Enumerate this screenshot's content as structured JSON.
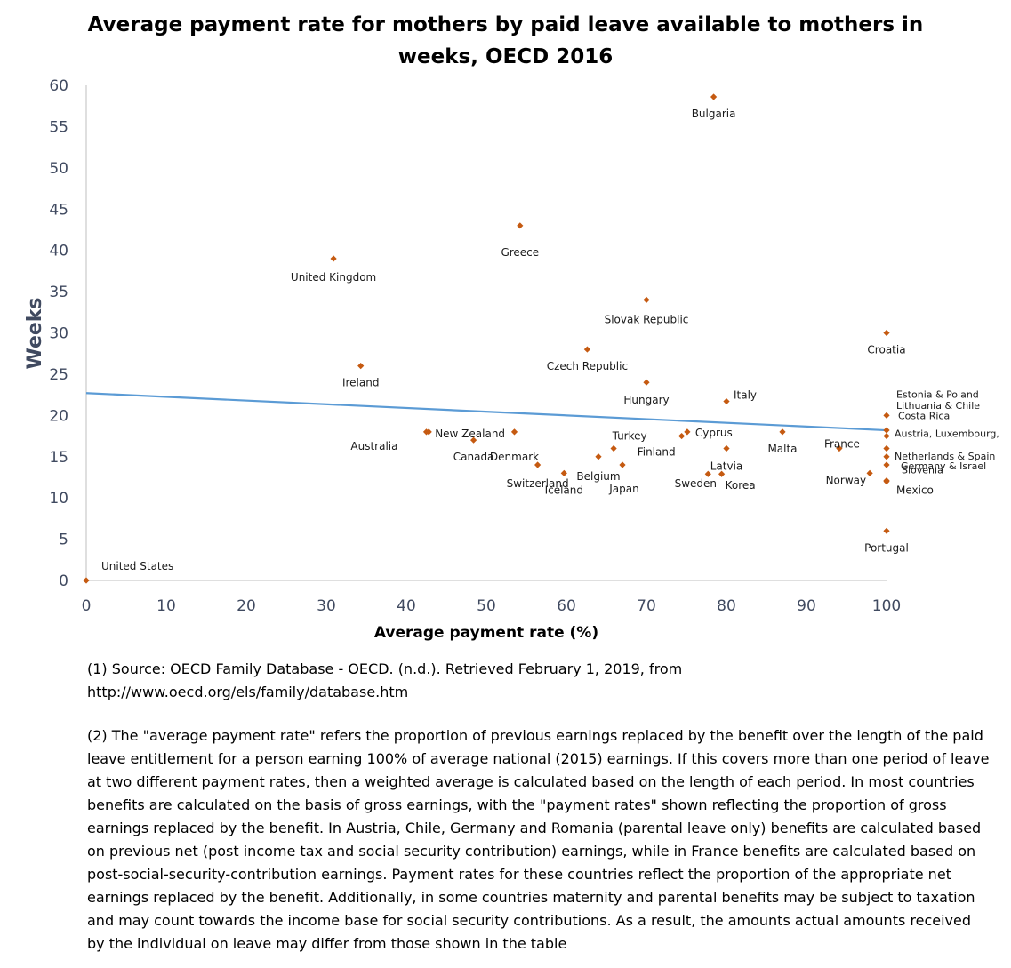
{
  "chart_data": {
    "type": "scatter",
    "title": "Average payment rate for mothers by  paid leave available to mothers in weeks, OECD 2016",
    "title_lines": [
      "Average payment rate for mothers by  paid leave available to mothers in",
      "weeks, OECD 2016"
    ],
    "xlabel": "Average payment rate (%)",
    "ylabel": "Weeks",
    "xlim": [
      0,
      100
    ],
    "ylim": [
      0,
      60
    ],
    "xticks": [
      "0",
      "10",
      "20",
      "30",
      "40",
      "50",
      "60",
      "70",
      "80",
      "90",
      "100"
    ],
    "yticks": [
      "0",
      "5",
      "10",
      "15",
      "20",
      "25",
      "30",
      "35",
      "40",
      "45",
      "50",
      "55",
      "60"
    ],
    "grid": false,
    "marker_color": "#c55a11",
    "trendline": {
      "x": [
        0,
        100
      ],
      "y": [
        22.7,
        18.2
      ],
      "color": "#5b9bd5"
    },
    "points": [
      {
        "x": 0,
        "y": 0,
        "label": "United States"
      },
      {
        "x": 78.4,
        "y": 58.6,
        "label": "Bulgaria"
      },
      {
        "x": 54.2,
        "y": 43,
        "label": "Greece"
      },
      {
        "x": 30.9,
        "y": 39,
        "label": "United Kingdom"
      },
      {
        "x": 70,
        "y": 34,
        "label": "Slovak Republic"
      },
      {
        "x": 100,
        "y": 30,
        "label": "Croatia"
      },
      {
        "x": 62.6,
        "y": 28,
        "label": "Czech Republic"
      },
      {
        "x": 34.3,
        "y": 26,
        "label": "Ireland"
      },
      {
        "x": 70,
        "y": 24,
        "label": "Hungary"
      },
      {
        "x": 80,
        "y": 21.7,
        "label": "Italy"
      },
      {
        "x": 100,
        "y": 20,
        "label": "Estonia & Poland"
      },
      {
        "x": 100,
        "y": 18.2,
        "label": "Lithuania & Chile"
      },
      {
        "x": 100,
        "y": 17.5,
        "label": "Costa Rica"
      },
      {
        "x": 100,
        "y": 16,
        "label": "Austria, Luxembourg,"
      },
      {
        "x": 100,
        "y": 15,
        "label": "Netherlands & Spain"
      },
      {
        "x": 100,
        "y": 14,
        "label": "Germany & Israel"
      },
      {
        "x": 100,
        "y": 12,
        "label": "Slovenia"
      },
      {
        "x": 100,
        "y": 6,
        "label": "Portugal"
      },
      {
        "x": 42.5,
        "y": 18,
        "label": "Australia"
      },
      {
        "x": 42.8,
        "y": 18,
        "label": "New Zealand"
      },
      {
        "x": 48.4,
        "y": 17,
        "label": "Canada"
      },
      {
        "x": 53.5,
        "y": 18,
        "label": "Denmark"
      },
      {
        "x": 56.4,
        "y": 14,
        "label": "Switzerland"
      },
      {
        "x": 59.7,
        "y": 13,
        "label": "Iceland"
      },
      {
        "x": 64,
        "y": 15,
        "label": "Belgium"
      },
      {
        "x": 65.9,
        "y": 16,
        "label": "Turkey"
      },
      {
        "x": 67,
        "y": 14,
        "label": "Japan"
      },
      {
        "x": 74.4,
        "y": 17.5,
        "label": "Finland"
      },
      {
        "x": 75.1,
        "y": 18,
        "label": "Cyprus"
      },
      {
        "x": 77.7,
        "y": 12.9,
        "label": "Sweden"
      },
      {
        "x": 79.4,
        "y": 12.9,
        "label": "Korea"
      },
      {
        "x": 80,
        "y": 16,
        "label": "Latvia"
      },
      {
        "x": 87,
        "y": 18,
        "label": "Malta"
      },
      {
        "x": 94.1,
        "y": 16,
        "label": "France"
      },
      {
        "x": 97.9,
        "y": 13,
        "label": "Norway"
      },
      {
        "x": 100,
        "y": 12.1,
        "label": "Mexico"
      }
    ]
  },
  "notes": {
    "note1_lines": [
      "(1) Source: OECD Family Database - OECD. (n.d.). Retrieved February 1, 2019, from",
      "http://www.oecd.org/els/family/database.htm"
    ],
    "note2_lines": [
      "(2) The \"average payment rate\" refers the proportion of previous earnings replaced by the benefit over the length of the paid",
      "leave entitlement for a person earning 100% of average national (2015) earnings. If this covers more than one period of leave",
      "at two different payment rates, then a weighted average is calculated based on the length of each period. In most countries",
      "benefits are calculated on the basis of gross earnings, with the \"payment rates\" shown reflecting the proportion of gross",
      "earnings replaced by the benefit. In Austria, Chile, Germany and Romania (parental leave only) benefits are calculated based",
      "on previous net (post income tax and social security contribution) earnings, while in France benefits are calculated based on",
      "post-social-security-contribution earnings. Payment rates for these countries reflect the proportion of the appropriate net",
      "earnings replaced by the benefit. Additionally, in some countries maternity and parental benefits may be subject to taxation",
      "and may count towards the income base for social security contributions. As a result, the amounts actual amounts received",
      "by the individual on leave may differ from those shown in the table"
    ]
  }
}
